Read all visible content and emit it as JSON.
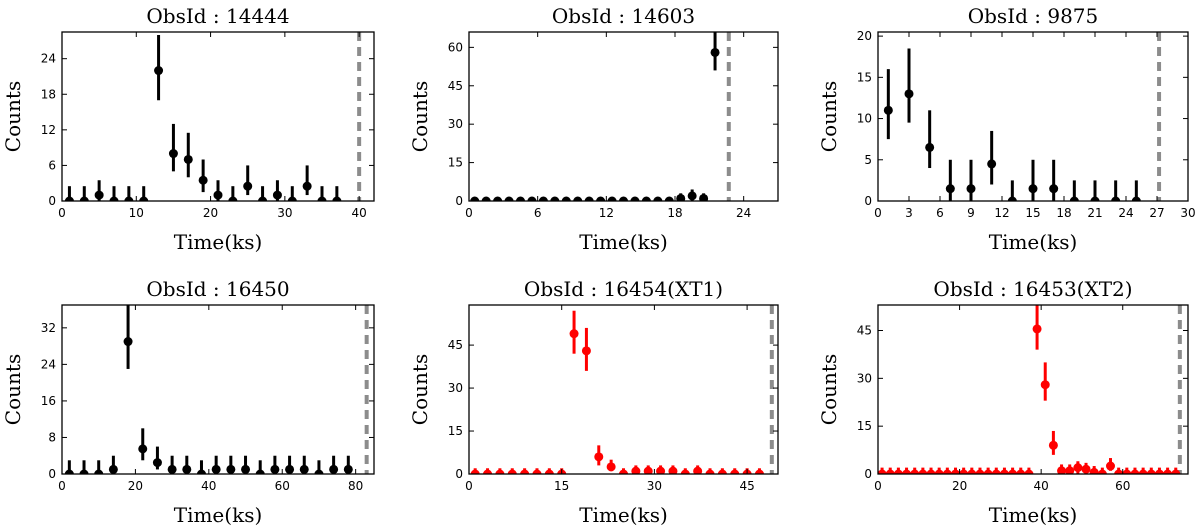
{
  "chart_data": [
    {
      "type": "scatter",
      "title": "ObsId : 14444",
      "xlabel": "Time(ks)",
      "ylabel": "Counts",
      "xlim": [
        0,
        42
      ],
      "ylim": [
        0,
        28.5
      ],
      "xticks": [
        0,
        10,
        20,
        30,
        40
      ],
      "yticks": [
        0,
        6,
        12,
        18,
        24
      ],
      "color": "#000000",
      "vline": 40,
      "points": [
        {
          "x": 1,
          "y": 0,
          "lo": 0,
          "hi": 2.5
        },
        {
          "x": 3,
          "y": 0,
          "lo": 0,
          "hi": 2.5
        },
        {
          "x": 5,
          "y": 1,
          "lo": 0,
          "hi": 3.5
        },
        {
          "x": 7,
          "y": 0,
          "lo": 0,
          "hi": 2.5
        },
        {
          "x": 9,
          "y": 0,
          "lo": 0,
          "hi": 2.5
        },
        {
          "x": 11,
          "y": 0,
          "lo": 0,
          "hi": 2.5
        },
        {
          "x": 13,
          "y": 22,
          "lo": 17,
          "hi": 28
        },
        {
          "x": 15,
          "y": 8,
          "lo": 5,
          "hi": 13
        },
        {
          "x": 17,
          "y": 7,
          "lo": 4,
          "hi": 11.5
        },
        {
          "x": 19,
          "y": 3.5,
          "lo": 1.5,
          "hi": 7
        },
        {
          "x": 21,
          "y": 1,
          "lo": 0,
          "hi": 3.5
        },
        {
          "x": 23,
          "y": 0,
          "lo": 0,
          "hi": 2.5
        },
        {
          "x": 25,
          "y": 2.5,
          "lo": 1,
          "hi": 6
        },
        {
          "x": 27,
          "y": 0,
          "lo": 0,
          "hi": 2.5
        },
        {
          "x": 29,
          "y": 1,
          "lo": 0,
          "hi": 3.5
        },
        {
          "x": 31,
          "y": 0,
          "lo": 0,
          "hi": 2.5
        },
        {
          "x": 33,
          "y": 2.5,
          "lo": 1,
          "hi": 6
        },
        {
          "x": 35,
          "y": 0,
          "lo": 0,
          "hi": 2.5
        },
        {
          "x": 37,
          "y": 0,
          "lo": 0,
          "hi": 2.5
        }
      ]
    },
    {
      "type": "scatter",
      "title": "ObsId : 14603",
      "xlabel": "Time(ks)",
      "ylabel": "Counts",
      "xlim": [
        0,
        27
      ],
      "ylim": [
        0,
        66
      ],
      "xticks": [
        0,
        6,
        12,
        18,
        24
      ],
      "yticks": [
        0,
        15,
        30,
        45,
        60
      ],
      "color": "#000000",
      "vline": 22.7,
      "points": [
        {
          "x": 0.5,
          "y": 0,
          "lo": 0,
          "hi": 1.5
        },
        {
          "x": 1.5,
          "y": 0,
          "lo": 0,
          "hi": 1.5
        },
        {
          "x": 2.5,
          "y": 0,
          "lo": 0,
          "hi": 1.5
        },
        {
          "x": 3.5,
          "y": 0,
          "lo": 0,
          "hi": 1.5
        },
        {
          "x": 4.5,
          "y": 0,
          "lo": 0,
          "hi": 1.5
        },
        {
          "x": 5.5,
          "y": 0,
          "lo": 0,
          "hi": 1.5
        },
        {
          "x": 6.5,
          "y": 0,
          "lo": 0,
          "hi": 1.5
        },
        {
          "x": 7.5,
          "y": 0,
          "lo": 0,
          "hi": 1.5
        },
        {
          "x": 8.5,
          "y": 0,
          "lo": 0,
          "hi": 1.5
        },
        {
          "x": 9.5,
          "y": 0,
          "lo": 0,
          "hi": 1.5
        },
        {
          "x": 10.5,
          "y": 0,
          "lo": 0,
          "hi": 1.5
        },
        {
          "x": 11.5,
          "y": 0,
          "lo": 0,
          "hi": 1.5
        },
        {
          "x": 12.5,
          "y": 0,
          "lo": 0,
          "hi": 1.5
        },
        {
          "x": 13.5,
          "y": 0,
          "lo": 0,
          "hi": 1.5
        },
        {
          "x": 14.5,
          "y": 0,
          "lo": 0,
          "hi": 1.5
        },
        {
          "x": 15.5,
          "y": 0,
          "lo": 0,
          "hi": 1.5
        },
        {
          "x": 16.5,
          "y": 0,
          "lo": 0,
          "hi": 1.5
        },
        {
          "x": 17.5,
          "y": 0,
          "lo": 0,
          "hi": 1.5
        },
        {
          "x": 18.5,
          "y": 1,
          "lo": 0,
          "hi": 3
        },
        {
          "x": 19.5,
          "y": 2,
          "lo": 0,
          "hi": 4.5
        },
        {
          "x": 20.5,
          "y": 1,
          "lo": 0,
          "hi": 3
        },
        {
          "x": 21.5,
          "y": 58,
          "lo": 51,
          "hi": 66
        }
      ]
    },
    {
      "type": "scatter",
      "title": "ObsId : 9875",
      "xlabel": "Time(ks)",
      "ylabel": "Counts",
      "xlim": [
        0,
        30
      ],
      "ylim": [
        0,
        20.5
      ],
      "xticks": [
        0,
        3,
        6,
        9,
        12,
        15,
        18,
        21,
        24,
        27,
        30
      ],
      "yticks": [
        0,
        5,
        10,
        15,
        20
      ],
      "color": "#000000",
      "vline": 27.2,
      "points": [
        {
          "x": 1,
          "y": 11,
          "lo": 7.5,
          "hi": 16
        },
        {
          "x": 3,
          "y": 13,
          "lo": 9.5,
          "hi": 18.5
        },
        {
          "x": 5,
          "y": 6.5,
          "lo": 4,
          "hi": 11
        },
        {
          "x": 7,
          "y": 1.5,
          "lo": 0,
          "hi": 5
        },
        {
          "x": 9,
          "y": 1.5,
          "lo": 0,
          "hi": 5
        },
        {
          "x": 11,
          "y": 4.5,
          "lo": 2,
          "hi": 8.5
        },
        {
          "x": 13,
          "y": 0,
          "lo": 0,
          "hi": 2.5
        },
        {
          "x": 15,
          "y": 1.5,
          "lo": 0,
          "hi": 5
        },
        {
          "x": 17,
          "y": 1.5,
          "lo": 0,
          "hi": 5
        },
        {
          "x": 19,
          "y": 0,
          "lo": 0,
          "hi": 2.5
        },
        {
          "x": 21,
          "y": 0,
          "lo": 0,
          "hi": 2.5
        },
        {
          "x": 23,
          "y": 0,
          "lo": 0,
          "hi": 2.5
        },
        {
          "x": 25,
          "y": 0,
          "lo": 0,
          "hi": 2.5
        }
      ]
    },
    {
      "type": "scatter",
      "title": "ObsId : 16450",
      "xlabel": "Time(ks)",
      "ylabel": "Counts",
      "xlim": [
        0,
        85
      ],
      "ylim": [
        0,
        37
      ],
      "xticks": [
        0,
        20,
        40,
        60,
        80
      ],
      "yticks": [
        0,
        8,
        16,
        24,
        32
      ],
      "color": "#000000",
      "vline": 83,
      "points": [
        {
          "x": 2,
          "y": 0,
          "lo": 0,
          "hi": 3
        },
        {
          "x": 6,
          "y": 0,
          "lo": 0,
          "hi": 3
        },
        {
          "x": 10,
          "y": 0,
          "lo": 0,
          "hi": 3
        },
        {
          "x": 14,
          "y": 1,
          "lo": 0,
          "hi": 4
        },
        {
          "x": 18,
          "y": 29,
          "lo": 23,
          "hi": 37
        },
        {
          "x": 22,
          "y": 5.5,
          "lo": 3,
          "hi": 10
        },
        {
          "x": 26,
          "y": 2.5,
          "lo": 1,
          "hi": 6
        },
        {
          "x": 30,
          "y": 1,
          "lo": 0,
          "hi": 4
        },
        {
          "x": 34,
          "y": 1,
          "lo": 0,
          "hi": 4
        },
        {
          "x": 38,
          "y": 0,
          "lo": 0,
          "hi": 3
        },
        {
          "x": 42,
          "y": 1,
          "lo": 0,
          "hi": 4
        },
        {
          "x": 46,
          "y": 1,
          "lo": 0,
          "hi": 4
        },
        {
          "x": 50,
          "y": 1,
          "lo": 0,
          "hi": 4
        },
        {
          "x": 54,
          "y": 0,
          "lo": 0,
          "hi": 3
        },
        {
          "x": 58,
          "y": 1,
          "lo": 0,
          "hi": 4
        },
        {
          "x": 62,
          "y": 1,
          "lo": 0,
          "hi": 4
        },
        {
          "x": 66,
          "y": 1,
          "lo": 0,
          "hi": 4
        },
        {
          "x": 70,
          "y": 0,
          "lo": 0,
          "hi": 3
        },
        {
          "x": 74,
          "y": 1,
          "lo": 0,
          "hi": 4
        },
        {
          "x": 78,
          "y": 1,
          "lo": 0,
          "hi": 4
        }
      ]
    },
    {
      "type": "scatter",
      "title": "ObsId : 16454(XT1)",
      "xlabel": "Time(ks)",
      "ylabel": "Counts",
      "xlim": [
        0,
        50
      ],
      "ylim": [
        0,
        59
      ],
      "xticks": [
        0,
        15,
        30,
        45
      ],
      "yticks": [
        0,
        15,
        30,
        45
      ],
      "color": "#ff0000",
      "vline": 49,
      "points": [
        {
          "x": 1,
          "y": 0,
          "lo": 0,
          "hi": 2
        },
        {
          "x": 3,
          "y": 0,
          "lo": 0,
          "hi": 2
        },
        {
          "x": 5,
          "y": 0,
          "lo": 0,
          "hi": 2
        },
        {
          "x": 7,
          "y": 0,
          "lo": 0,
          "hi": 2
        },
        {
          "x": 9,
          "y": 0,
          "lo": 0,
          "hi": 2
        },
        {
          "x": 11,
          "y": 0,
          "lo": 0,
          "hi": 2
        },
        {
          "x": 13,
          "y": 0,
          "lo": 0,
          "hi": 2
        },
        {
          "x": 15,
          "y": 0,
          "lo": 0,
          "hi": 2
        },
        {
          "x": 17,
          "y": 49,
          "lo": 42,
          "hi": 57
        },
        {
          "x": 19,
          "y": 43,
          "lo": 36,
          "hi": 51
        },
        {
          "x": 21,
          "y": 6,
          "lo": 3,
          "hi": 10
        },
        {
          "x": 23,
          "y": 2.5,
          "lo": 1,
          "hi": 5
        },
        {
          "x": 25,
          "y": 0,
          "lo": 0,
          "hi": 2
        },
        {
          "x": 27,
          "y": 1,
          "lo": 0,
          "hi": 3
        },
        {
          "x": 29,
          "y": 1,
          "lo": 0,
          "hi": 3
        },
        {
          "x": 31,
          "y": 1,
          "lo": 0,
          "hi": 3
        },
        {
          "x": 33,
          "y": 1,
          "lo": 0,
          "hi": 3
        },
        {
          "x": 35,
          "y": 0,
          "lo": 0,
          "hi": 2
        },
        {
          "x": 37,
          "y": 1,
          "lo": 0,
          "hi": 3
        },
        {
          "x": 39,
          "y": 0,
          "lo": 0,
          "hi": 2
        },
        {
          "x": 41,
          "y": 0,
          "lo": 0,
          "hi": 2
        },
        {
          "x": 43,
          "y": 0,
          "lo": 0,
          "hi": 2
        },
        {
          "x": 45,
          "y": 0,
          "lo": 0,
          "hi": 2
        },
        {
          "x": 47,
          "y": 0,
          "lo": 0,
          "hi": 2
        }
      ]
    },
    {
      "type": "scatter",
      "title": "ObsId : 16453(XT2)",
      "xlabel": "Time(ks)",
      "ylabel": "Counts",
      "xlim": [
        0,
        76
      ],
      "ylim": [
        0,
        53
      ],
      "xticks": [
        0,
        20,
        40,
        60
      ],
      "yticks": [
        0,
        15,
        30,
        45
      ],
      "color": "#ff0000",
      "vline": 74,
      "points": [
        {
          "x": 1,
          "y": 0,
          "lo": 0,
          "hi": 2
        },
        {
          "x": 3,
          "y": 0,
          "lo": 0,
          "hi": 2
        },
        {
          "x": 5,
          "y": 0,
          "lo": 0,
          "hi": 2
        },
        {
          "x": 7,
          "y": 0,
          "lo": 0,
          "hi": 2
        },
        {
          "x": 9,
          "y": 0,
          "lo": 0,
          "hi": 2
        },
        {
          "x": 11,
          "y": 0,
          "lo": 0,
          "hi": 2
        },
        {
          "x": 13,
          "y": 0,
          "lo": 0,
          "hi": 2
        },
        {
          "x": 15,
          "y": 0,
          "lo": 0,
          "hi": 2
        },
        {
          "x": 17,
          "y": 0,
          "lo": 0,
          "hi": 2
        },
        {
          "x": 19,
          "y": 0,
          "lo": 0,
          "hi": 2
        },
        {
          "x": 21,
          "y": 0,
          "lo": 0,
          "hi": 2
        },
        {
          "x": 23,
          "y": 0,
          "lo": 0,
          "hi": 2
        },
        {
          "x": 25,
          "y": 0,
          "lo": 0,
          "hi": 2
        },
        {
          "x": 27,
          "y": 0,
          "lo": 0,
          "hi": 2
        },
        {
          "x": 29,
          "y": 0,
          "lo": 0,
          "hi": 2
        },
        {
          "x": 31,
          "y": 0,
          "lo": 0,
          "hi": 2
        },
        {
          "x": 33,
          "y": 0,
          "lo": 0,
          "hi": 2
        },
        {
          "x": 35,
          "y": 0,
          "lo": 0,
          "hi": 2
        },
        {
          "x": 37,
          "y": 0,
          "lo": 0,
          "hi": 2
        },
        {
          "x": 39,
          "y": 45.5,
          "lo": 39,
          "hi": 53
        },
        {
          "x": 41,
          "y": 28,
          "lo": 23,
          "hi": 35
        },
        {
          "x": 43,
          "y": 9,
          "lo": 6,
          "hi": 13.5
        },
        {
          "x": 45,
          "y": 1,
          "lo": 0,
          "hi": 3
        },
        {
          "x": 47,
          "y": 1,
          "lo": 0,
          "hi": 3
        },
        {
          "x": 49,
          "y": 2,
          "lo": 0,
          "hi": 4
        },
        {
          "x": 51,
          "y": 1.5,
          "lo": 0,
          "hi": 3.5
        },
        {
          "x": 53,
          "y": 0.5,
          "lo": 0,
          "hi": 2.5
        },
        {
          "x": 55,
          "y": 0,
          "lo": 0,
          "hi": 2
        },
        {
          "x": 57,
          "y": 2.5,
          "lo": 1,
          "hi": 5
        },
        {
          "x": 59,
          "y": 0,
          "lo": 0,
          "hi": 2
        },
        {
          "x": 61,
          "y": 0,
          "lo": 0,
          "hi": 2
        },
        {
          "x": 63,
          "y": 0,
          "lo": 0,
          "hi": 2
        },
        {
          "x": 65,
          "y": 0,
          "lo": 0,
          "hi": 2
        },
        {
          "x": 67,
          "y": 0,
          "lo": 0,
          "hi": 2
        },
        {
          "x": 69,
          "y": 0,
          "lo": 0,
          "hi": 2
        },
        {
          "x": 71,
          "y": 0,
          "lo": 0,
          "hi": 2
        },
        {
          "x": 73,
          "y": 0,
          "lo": 0,
          "hi": 2
        }
      ]
    }
  ]
}
